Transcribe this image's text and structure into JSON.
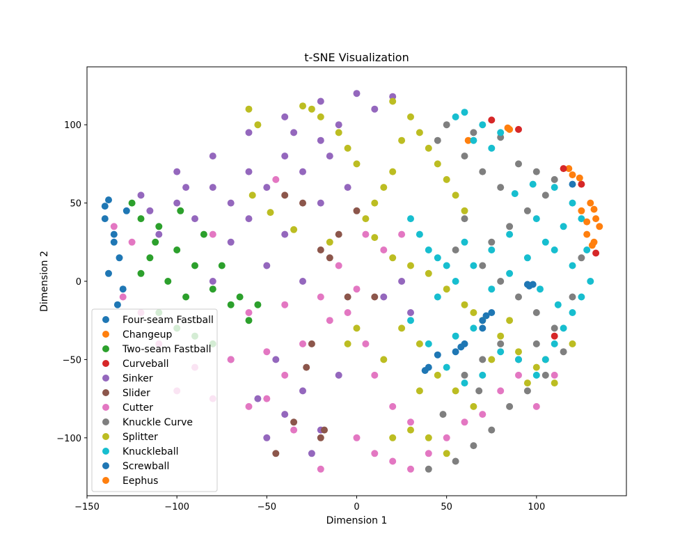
{
  "chart_data": {
    "type": "scatter",
    "title": "t-SNE Visualization",
    "xlabel": "Dimension 1",
    "ylabel": "Dimension 2",
    "xlim": [
      -150,
      150
    ],
    "ylim": [
      -137,
      137
    ],
    "xticks": [
      -150,
      -100,
      -50,
      0,
      50,
      100
    ],
    "yticks": [
      -100,
      -50,
      0,
      50,
      100
    ],
    "xtick_labels": [
      "−150",
      "−100",
      "−50",
      "0",
      "50",
      "100"
    ],
    "ytick_labels": [
      "−100",
      "−50",
      "0",
      "50",
      "100"
    ],
    "grid": false,
    "legend_position": "lower-left",
    "series": [
      {
        "name": "Four-seam Fastball",
        "color": "#1f77b4",
        "points": [
          [
            -138,
            52
          ],
          [
            -140,
            40
          ],
          [
            -135,
            30
          ],
          [
            -132,
            15
          ],
          [
            -138,
            5
          ],
          [
            -130,
            -5
          ],
          [
            -135,
            25
          ],
          [
            -128,
            45
          ],
          [
            -140,
            48
          ],
          [
            -133,
            -15
          ],
          [
            60,
            -40
          ],
          [
            70,
            -30
          ],
          [
            72,
            -22
          ],
          [
            95,
            -2
          ],
          [
            98,
            -2
          ],
          [
            120,
            62
          ],
          [
            55,
            -45
          ],
          [
            40,
            -55
          ]
        ]
      },
      {
        "name": "Changeup",
        "color": "#ff7f0e",
        "points": [
          [
            125,
            45
          ],
          [
            130,
            50
          ],
          [
            133,
            40
          ],
          [
            135,
            35
          ],
          [
            128,
            30
          ],
          [
            120,
            68
          ],
          [
            118,
            72
          ],
          [
            85,
            97
          ],
          [
            62,
            90
          ],
          [
            132,
            25
          ]
        ]
      },
      {
        "name": "Two-seam Fastball",
        "color": "#2ca02c",
        "points": [
          [
            -120,
            40
          ],
          [
            -110,
            35
          ],
          [
            -100,
            20
          ],
          [
            -115,
            15
          ],
          [
            -90,
            10
          ],
          [
            -105,
            0
          ],
          [
            -95,
            -10
          ],
          [
            -80,
            -5
          ],
          [
            -70,
            -15
          ],
          [
            -60,
            -25
          ],
          [
            -85,
            30
          ],
          [
            -75,
            10
          ],
          [
            -125,
            50
          ],
          [
            -110,
            -20
          ],
          [
            -100,
            -30
          ],
          [
            -90,
            -35
          ],
          [
            -80,
            -40
          ],
          [
            -65,
            -10
          ],
          [
            -55,
            -15
          ],
          [
            -120,
            5
          ],
          [
            -112,
            25
          ],
          [
            -98,
            45
          ]
        ]
      },
      {
        "name": "Curveball",
        "color": "#d62728",
        "points": [
          [
            90,
            97
          ],
          [
            115,
            72
          ],
          [
            125,
            62
          ],
          [
            75,
            103
          ],
          [
            133,
            18
          ],
          [
            110,
            -35
          ]
        ]
      },
      {
        "name": "Sinker",
        "color": "#9467bd",
        "points": [
          [
            -120,
            55
          ],
          [
            -100,
            70
          ],
          [
            -80,
            80
          ],
          [
            -60,
            95
          ],
          [
            -40,
            105
          ],
          [
            -20,
            115
          ],
          [
            0,
            120
          ],
          [
            -100,
            50
          ],
          [
            -80,
            60
          ],
          [
            -60,
            70
          ],
          [
            -40,
            80
          ],
          [
            -20,
            90
          ],
          [
            -10,
            100
          ],
          [
            -110,
            30
          ],
          [
            -90,
            40
          ],
          [
            -70,
            50
          ],
          [
            -50,
            60
          ],
          [
            -30,
            70
          ],
          [
            -15,
            80
          ],
          [
            -60,
            40
          ],
          [
            -40,
            30
          ],
          [
            -20,
            50
          ],
          [
            -70,
            25
          ],
          [
            -50,
            10
          ],
          [
            -30,
            0
          ],
          [
            -80,
            0
          ],
          [
            10,
            110
          ],
          [
            20,
            118
          ],
          [
            -45,
            -50
          ],
          [
            -30,
            -70
          ],
          [
            -20,
            -95
          ],
          [
            -40,
            -85
          ],
          [
            -55,
            -75
          ],
          [
            -10,
            -60
          ],
          [
            -25,
            -110
          ],
          [
            -50,
            -100
          ],
          [
            30,
            -20
          ],
          [
            25,
            0
          ],
          [
            15,
            -10
          ],
          [
            -95,
            60
          ],
          [
            -115,
            45
          ],
          [
            -5,
            60
          ],
          [
            -35,
            95
          ],
          [
            -70,
            -50
          ]
        ]
      },
      {
        "name": "Slider",
        "color": "#8c564b",
        "points": [
          [
            -40,
            55
          ],
          [
            -30,
            50
          ],
          [
            -20,
            20
          ],
          [
            -15,
            15
          ],
          [
            -25,
            -40
          ],
          [
            -20,
            -100
          ],
          [
            -18,
            -95
          ],
          [
            -45,
            -110
          ],
          [
            -35,
            -90
          ],
          [
            -28,
            -55
          ],
          [
            -5,
            -10
          ],
          [
            10,
            -10
          ],
          [
            -10,
            30
          ],
          [
            0,
            45
          ]
        ]
      },
      {
        "name": "Cutter",
        "color": "#e377c2",
        "points": [
          [
            -60,
            -20
          ],
          [
            -40,
            -15
          ],
          [
            -20,
            -10
          ],
          [
            0,
            -5
          ],
          [
            -10,
            10
          ],
          [
            -30,
            -40
          ],
          [
            -50,
            -45
          ],
          [
            -70,
            -50
          ],
          [
            -90,
            -55
          ],
          [
            -100,
            -70
          ],
          [
            -80,
            -75
          ],
          [
            -60,
            -80
          ],
          [
            -110,
            -40
          ],
          [
            -120,
            -20
          ],
          [
            -130,
            -10
          ],
          [
            -135,
            35
          ],
          [
            -125,
            25
          ],
          [
            -20,
            -120
          ],
          [
            0,
            -100
          ],
          [
            10,
            -110
          ],
          [
            20,
            -115
          ],
          [
            30,
            -120
          ],
          [
            40,
            -110
          ],
          [
            50,
            -100
          ],
          [
            60,
            -90
          ],
          [
            70,
            -85
          ],
          [
            80,
            -70
          ],
          [
            90,
            -60
          ],
          [
            100,
            -80
          ],
          [
            110,
            -60
          ],
          [
            20,
            -80
          ],
          [
            30,
            -90
          ],
          [
            10,
            -60
          ],
          [
            5,
            -40
          ],
          [
            -5,
            -20
          ],
          [
            15,
            20
          ],
          [
            25,
            30
          ],
          [
            -40,
            -60
          ],
          [
            -35,
            -95
          ],
          [
            -50,
            -75
          ],
          [
            -15,
            -25
          ],
          [
            5,
            30
          ],
          [
            -80,
            30
          ],
          [
            -45,
            65
          ]
        ]
      },
      {
        "name": "Knuckle Curve",
        "color": "#7f7f7f",
        "points": [
          [
            50,
            100
          ],
          [
            65,
            95
          ],
          [
            80,
            92
          ],
          [
            45,
            90
          ],
          [
            60,
            80
          ],
          [
            70,
            70
          ],
          [
            80,
            60
          ],
          [
            90,
            75
          ],
          [
            100,
            70
          ],
          [
            110,
            65
          ],
          [
            105,
            55
          ],
          [
            95,
            45
          ],
          [
            85,
            35
          ],
          [
            75,
            25
          ],
          [
            70,
            10
          ],
          [
            80,
            0
          ],
          [
            90,
            -10
          ],
          [
            100,
            -20
          ],
          [
            110,
            -30
          ],
          [
            115,
            -45
          ],
          [
            105,
            -60
          ],
          [
            95,
            -70
          ],
          [
            85,
            -80
          ],
          [
            75,
            -95
          ],
          [
            65,
            -105
          ],
          [
            55,
            -115
          ],
          [
            40,
            -120
          ],
          [
            60,
            -60
          ],
          [
            70,
            -50
          ],
          [
            80,
            -40
          ],
          [
            90,
            -50
          ],
          [
            100,
            -40
          ],
          [
            120,
            -10
          ],
          [
            125,
            15
          ],
          [
            55,
            20
          ],
          [
            60,
            40
          ],
          [
            68,
            -70
          ],
          [
            48,
            -85
          ]
        ]
      },
      {
        "name": "Splitter",
        "color": "#bcbd22",
        "points": [
          [
            20,
            115
          ],
          [
            30,
            105
          ],
          [
            35,
            95
          ],
          [
            40,
            85
          ],
          [
            45,
            75
          ],
          [
            50,
            65
          ],
          [
            55,
            55
          ],
          [
            60,
            45
          ],
          [
            25,
            90
          ],
          [
            20,
            70
          ],
          [
            15,
            60
          ],
          [
            10,
            50
          ],
          [
            5,
            40
          ],
          [
            0,
            75
          ],
          [
            -5,
            85
          ],
          [
            -10,
            95
          ],
          [
            -20,
            105
          ],
          [
            -25,
            110
          ],
          [
            -30,
            112
          ],
          [
            -55,
            100
          ],
          [
            -60,
            110
          ],
          [
            -58,
            55
          ],
          [
            -48,
            44
          ],
          [
            -35,
            33
          ],
          [
            -15,
            25
          ],
          [
            10,
            28
          ],
          [
            20,
            15
          ],
          [
            30,
            10
          ],
          [
            40,
            5
          ],
          [
            50,
            -5
          ],
          [
            60,
            -15
          ],
          [
            70,
            -25
          ],
          [
            80,
            -35
          ],
          [
            90,
            -45
          ],
          [
            100,
            -55
          ],
          [
            110,
            -65
          ],
          [
            25,
            -30
          ],
          [
            35,
            -40
          ],
          [
            45,
            -60
          ],
          [
            55,
            -70
          ],
          [
            65,
            -80
          ],
          [
            30,
            -95
          ],
          [
            40,
            -100
          ],
          [
            50,
            -110
          ],
          [
            20,
            -100
          ],
          [
            120,
            -40
          ],
          [
            105,
            -50
          ],
          [
            85,
            -25
          ],
          [
            95,
            -65
          ],
          [
            65,
            -20
          ],
          [
            75,
            -50
          ],
          [
            -5,
            -40
          ],
          [
            0,
            -30
          ],
          [
            15,
            -50
          ],
          [
            35,
            -70
          ]
        ]
      },
      {
        "name": "Knuckleball",
        "color": "#17becf",
        "points": [
          [
            60,
            108
          ],
          [
            70,
            100
          ],
          [
            80,
            95
          ],
          [
            75,
            85
          ],
          [
            65,
            90
          ],
          [
            55,
            105
          ],
          [
            120,
            50
          ],
          [
            125,
            40
          ],
          [
            115,
            35
          ],
          [
            105,
            25
          ],
          [
            95,
            15
          ],
          [
            85,
            5
          ],
          [
            75,
            -5
          ],
          [
            110,
            20
          ],
          [
            120,
            10
          ],
          [
            130,
            0
          ],
          [
            125,
            -10
          ],
          [
            120,
            -20
          ],
          [
            115,
            -30
          ],
          [
            110,
            -40
          ],
          [
            105,
            -50
          ],
          [
            100,
            -60
          ],
          [
            90,
            -50
          ],
          [
            80,
            -45
          ],
          [
            70,
            -60
          ],
          [
            60,
            -65
          ],
          [
            50,
            -55
          ],
          [
            40,
            -40
          ],
          [
            55,
            -35
          ],
          [
            65,
            -30
          ],
          [
            30,
            -25
          ],
          [
            45,
            -10
          ],
          [
            55,
            0
          ],
          [
            65,
            10
          ],
          [
            75,
            20
          ],
          [
            85,
            30
          ],
          [
            100,
            40
          ],
          [
            110,
            60
          ],
          [
            98,
            62
          ],
          [
            88,
            56
          ],
          [
            30,
            40
          ],
          [
            35,
            30
          ],
          [
            40,
            20
          ],
          [
            45,
            15
          ],
          [
            60,
            25
          ],
          [
            50,
            10
          ],
          [
            128,
            20
          ],
          [
            112,
            -15
          ],
          [
            102,
            -5
          ]
        ]
      },
      {
        "name": "Screwball",
        "color": "#1f77b4",
        "points": [
          [
            70,
            -25
          ],
          [
            75,
            -20
          ],
          [
            58,
            -42
          ],
          [
            45,
            -47
          ],
          [
            38,
            -57
          ],
          [
            96,
            -3
          ]
        ]
      },
      {
        "name": "Eephus",
        "color": "#ff7f0e",
        "points": [
          [
            132,
            46
          ],
          [
            128,
            38
          ],
          [
            124,
            66
          ],
          [
            84,
            98
          ],
          [
            131,
            23
          ]
        ]
      }
    ]
  }
}
